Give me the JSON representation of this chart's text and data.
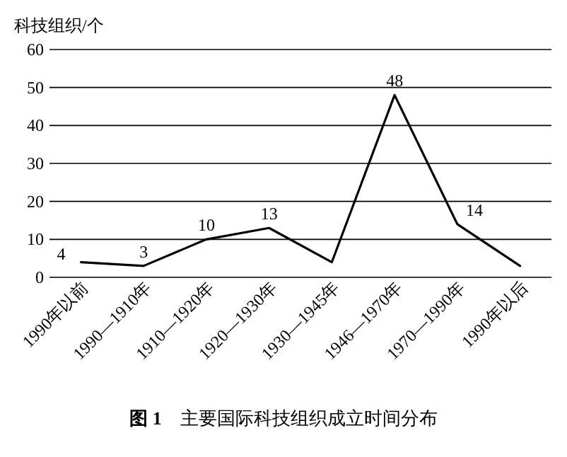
{
  "chart_data": {
    "type": "line",
    "title": "**图 1**　主要国际科技组织成立时间分布",
    "ylabel": "科技组织/个",
    "categories": [
      "1990年以前",
      "1990—1910年",
      "1910—1920年",
      "1920—1930年",
      "1930—1945年",
      "1946—1970年",
      "1970—1990年",
      "1990年以后"
    ],
    "series": [
      {
        "color": "#000000",
        "values": [
          4,
          3,
          10,
          13,
          4,
          48,
          14,
          3
        ],
        "value_labels": [
          "4",
          "3",
          "10",
          "13",
          null,
          "48",
          "14",
          null
        ]
      }
    ],
    "ylim": [
      0,
      60
    ],
    "yticks": [
      0,
      10,
      20,
      30,
      40,
      50,
      60
    ],
    "grid": "y",
    "marker": "none",
    "line_style": "solid"
  }
}
